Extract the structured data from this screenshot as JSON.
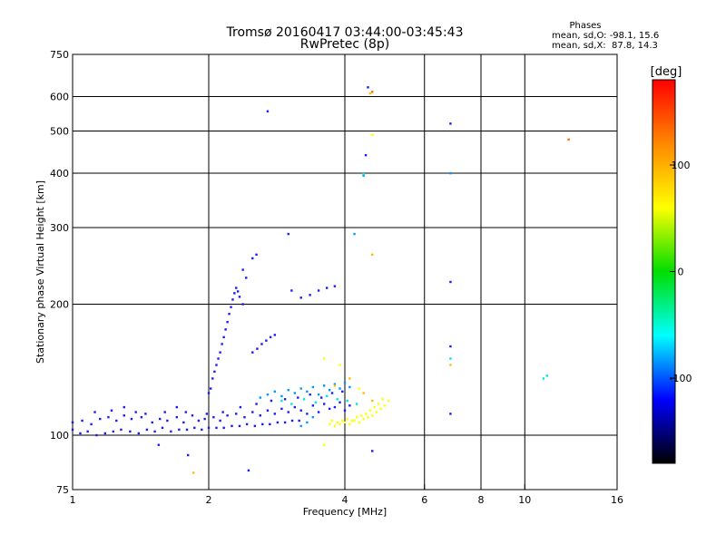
{
  "chart_data": {
    "type": "scatter",
    "title": "Tromsø 20160417 03:44:00-03:45:43",
    "subtitle": "RwPretec (8p)",
    "xlabel": "Frequency [MHz]",
    "ylabel": "Stationary phase Virtual Height [km]",
    "x_scale": "log",
    "y_scale": "log",
    "xlim": [
      1,
      16
    ],
    "ylim": [
      75,
      750
    ],
    "xticks": [
      1,
      2,
      4,
      6,
      8,
      10,
      16
    ],
    "yticks": [
      75,
      100,
      200,
      300,
      400,
      500,
      600,
      750
    ],
    "x_gridlines": [
      2,
      4,
      6,
      8,
      10
    ],
    "y_gridlines": [
      100,
      200,
      300,
      400,
      500,
      600
    ],
    "grid": true,
    "stats": {
      "heading": "Phases",
      "line_o": "mean, sd,O: -98.1, 15.6",
      "line_x": "mean, sd,X:  87.8, 14.3"
    },
    "colorbar": {
      "label": "[deg]",
      "range": [
        -180,
        180
      ],
      "ticks": [
        100,
        0,
        -100
      ],
      "colors": [
        "#ff0000",
        "#ff8800",
        "#ffff00",
        "#00dd00",
        "#00ffff",
        "#0000ff",
        "#000000"
      ]
    },
    "series": [
      {
        "color": "#1a1aff",
        "points": [
          [
            1.0,
            103
          ],
          [
            1.04,
            101
          ],
          [
            1.08,
            102
          ],
          [
            1.13,
            100
          ],
          [
            1.18,
            101
          ],
          [
            1.23,
            102
          ],
          [
            1.28,
            103
          ],
          [
            1.34,
            102
          ],
          [
            1.4,
            101
          ],
          [
            1.46,
            103
          ],
          [
            1.52,
            102
          ],
          [
            1.58,
            104
          ],
          [
            1.65,
            102
          ],
          [
            1.72,
            103
          ],
          [
            1.79,
            103
          ],
          [
            1.86,
            104
          ],
          [
            1.93,
            103
          ],
          [
            2.0,
            104
          ],
          [
            2.08,
            104
          ],
          [
            2.16,
            104
          ],
          [
            2.25,
            105
          ],
          [
            2.34,
            105
          ],
          [
            2.43,
            106
          ],
          [
            2.53,
            105
          ],
          [
            2.63,
            106
          ],
          [
            2.73,
            106
          ],
          [
            2.84,
            107
          ],
          [
            2.95,
            107
          ],
          [
            3.06,
            108
          ],
          [
            3.17,
            108
          ],
          [
            1.0,
            107
          ],
          [
            1.05,
            108
          ],
          [
            1.1,
            106
          ],
          [
            1.15,
            109
          ],
          [
            1.2,
            110
          ],
          [
            1.25,
            108
          ],
          [
            1.3,
            111
          ],
          [
            1.35,
            109
          ],
          [
            1.42,
            110
          ],
          [
            1.5,
            107
          ],
          [
            1.56,
            109
          ],
          [
            1.62,
            108
          ],
          [
            1.7,
            110
          ],
          [
            1.76,
            107
          ],
          [
            1.84,
            111
          ],
          [
            1.9,
            108
          ],
          [
            1.96,
            109
          ],
          [
            2.05,
            110
          ],
          [
            2.12,
            108
          ],
          [
            2.2,
            111
          ],
          [
            2.3,
            112
          ],
          [
            2.4,
            110
          ],
          [
            2.5,
            113
          ],
          [
            2.6,
            111
          ],
          [
            2.7,
            114
          ],
          [
            2.8,
            112
          ],
          [
            2.9,
            115
          ],
          [
            3.0,
            113
          ],
          [
            3.1,
            116
          ],
          [
            3.2,
            114
          ],
          [
            3.3,
            112
          ],
          [
            3.4,
            117
          ],
          [
            3.5,
            113
          ],
          [
            3.6,
            118
          ],
          [
            3.7,
            115
          ],
          [
            3.8,
            116
          ],
          [
            3.9,
            119
          ],
          [
            4.0,
            114
          ],
          [
            4.1,
            117
          ],
          [
            1.12,
            113
          ],
          [
            1.22,
            114
          ],
          [
            1.3,
            116
          ],
          [
            1.38,
            113
          ],
          [
            1.45,
            112
          ],
          [
            1.6,
            113
          ],
          [
            1.7,
            116
          ],
          [
            1.78,
            113
          ],
          [
            1.98,
            112
          ],
          [
            2.15,
            113
          ],
          [
            2.35,
            116
          ],
          [
            2.55,
            118
          ],
          [
            2.75,
            120
          ],
          [
            2.95,
            121
          ],
          [
            3.15,
            122
          ],
          [
            3.35,
            124
          ],
          [
            3.55,
            122
          ],
          [
            3.75,
            125
          ],
          [
            3.95,
            126
          ],
          [
            2.0,
            125
          ],
          [
            2.02,
            128
          ],
          [
            2.04,
            135
          ],
          [
            2.06,
            140
          ],
          [
            2.08,
            145
          ],
          [
            2.1,
            150
          ],
          [
            2.12,
            155
          ],
          [
            2.14,
            162
          ],
          [
            2.16,
            168
          ],
          [
            2.18,
            175
          ],
          [
            2.2,
            182
          ],
          [
            2.22,
            190
          ],
          [
            2.24,
            197
          ],
          [
            2.26,
            205
          ],
          [
            2.28,
            212
          ],
          [
            2.3,
            218
          ],
          [
            2.32,
            214
          ],
          [
            2.34,
            208
          ],
          [
            2.38,
            200
          ],
          [
            2.5,
            155
          ],
          [
            2.56,
            158
          ],
          [
            2.62,
            162
          ],
          [
            2.68,
            165
          ],
          [
            2.74,
            168
          ],
          [
            2.8,
            170
          ],
          [
            2.5,
            255
          ],
          [
            2.55,
            260
          ],
          [
            2.42,
            230
          ],
          [
            2.38,
            240
          ],
          [
            2.7,
            555
          ],
          [
            3.0,
            290
          ],
          [
            3.05,
            215
          ],
          [
            3.2,
            207
          ],
          [
            3.35,
            210
          ],
          [
            3.5,
            215
          ],
          [
            3.65,
            218
          ],
          [
            3.8,
            220
          ],
          [
            4.5,
            630
          ],
          [
            4.45,
            440
          ],
          [
            4.6,
            92
          ],
          [
            6.85,
            520
          ],
          [
            6.85,
            225
          ],
          [
            6.85,
            160
          ],
          [
            6.85,
            112
          ],
          [
            2.45,
            83
          ],
          [
            1.55,
            95
          ],
          [
            1.8,
            90
          ]
        ]
      },
      {
        "color": "#0099ff",
        "points": [
          [
            2.6,
            122
          ],
          [
            2.7,
            124
          ],
          [
            2.8,
            126
          ],
          [
            2.9,
            123
          ],
          [
            3.0,
            127
          ],
          [
            3.1,
            125
          ],
          [
            3.2,
            128
          ],
          [
            3.3,
            126
          ],
          [
            3.4,
            129
          ],
          [
            3.5,
            124
          ],
          [
            3.6,
            130
          ],
          [
            3.7,
            127
          ],
          [
            3.8,
            131
          ],
          [
            3.9,
            128
          ],
          [
            4.0,
            132
          ],
          [
            4.1,
            129
          ],
          [
            3.2,
            105
          ],
          [
            3.3,
            107
          ],
          [
            3.4,
            110
          ],
          [
            4.4,
            395
          ],
          [
            4.2,
            290
          ],
          [
            6.85,
            400
          ]
        ]
      },
      {
        "color": "#00e5e5",
        "points": [
          [
            2.9,
            120
          ],
          [
            3.05,
            118
          ],
          [
            3.25,
            121
          ],
          [
            3.45,
            119
          ],
          [
            3.65,
            123
          ],
          [
            3.85,
            121
          ],
          [
            4.05,
            120
          ],
          [
            4.25,
            118
          ],
          [
            11.0,
            135
          ],
          [
            11.2,
            137
          ],
          [
            4.4,
            398
          ],
          [
            6.85,
            150
          ]
        ]
      },
      {
        "color": "#ffff00",
        "points": [
          [
            3.7,
            106
          ],
          [
            3.8,
            105
          ],
          [
            3.9,
            106
          ],
          [
            4.0,
            107
          ],
          [
            4.1,
            106
          ],
          [
            4.2,
            108
          ],
          [
            4.3,
            107
          ],
          [
            4.4,
            109
          ],
          [
            4.5,
            110
          ],
          [
            4.6,
            111
          ],
          [
            4.7,
            113
          ],
          [
            4.8,
            115
          ],
          [
            4.9,
            117
          ],
          [
            5.0,
            120
          ],
          [
            3.75,
            108
          ],
          [
            3.85,
            107
          ],
          [
            3.95,
            108
          ],
          [
            4.05,
            109
          ],
          [
            4.15,
            108
          ],
          [
            4.25,
            110
          ],
          [
            4.35,
            111
          ],
          [
            4.45,
            112
          ],
          [
            4.55,
            114
          ],
          [
            4.65,
            116
          ],
          [
            4.75,
            118
          ],
          [
            4.85,
            121
          ],
          [
            4.6,
            490
          ],
          [
            3.6,
            150
          ],
          [
            3.9,
            145
          ],
          [
            4.3,
            128
          ],
          [
            3.6,
            95
          ]
        ]
      },
      {
        "color": "#ffbb00",
        "points": [
          [
            3.8,
            130
          ],
          [
            4.1,
            135
          ],
          [
            4.4,
            125
          ],
          [
            4.6,
            120
          ],
          [
            4.6,
            260
          ],
          [
            4.55,
            610
          ],
          [
            6.85,
            145
          ],
          [
            1.85,
            82
          ]
        ]
      },
      {
        "color": "#ff6a00",
        "points": [
          [
            12.5,
            478
          ],
          [
            4.6,
            615
          ]
        ]
      }
    ]
  }
}
